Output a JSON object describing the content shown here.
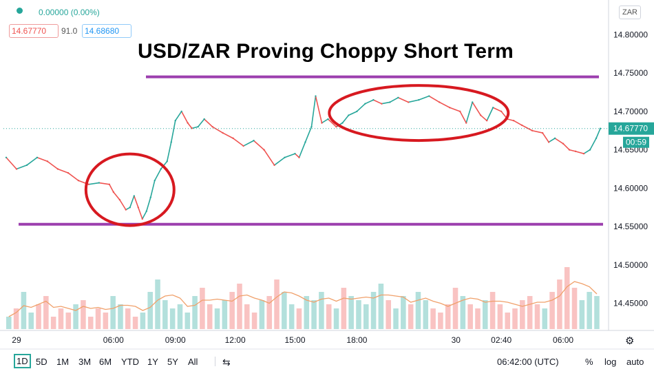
{
  "header": {
    "change": "0.00000 (0.00%)",
    "bid": "14.67770",
    "spread": "91.0",
    "ask": "14.68680"
  },
  "currency_badge": "ZAR",
  "colors": {
    "up": "#26a69a",
    "down": "#ef5350",
    "annotation_line": "#9c3fae",
    "ellipse": "#d71920",
    "volume_ma": "#f0a06a"
  },
  "chart_data": {
    "type": "line",
    "title": "USD/ZAR Proving Choppy Short Term",
    "price_axis": {
      "ticks": [
        "14.80000",
        "14.75000",
        "14.70000",
        "14.65000",
        "14.60000",
        "14.55000",
        "14.50000",
        "14.45000"
      ],
      "ylim": [
        14.43,
        14.82
      ]
    },
    "time_axis": {
      "ticks": [
        "29",
        "06:00",
        "09:00",
        "12:00",
        "15:00",
        "18:00",
        "30",
        "02:40",
        "06:00"
      ],
      "xlim_hours": [
        0,
        29
      ]
    },
    "price_series": {
      "name": "USD/ZAR",
      "x_hours": [
        0,
        0.5,
        1,
        1.5,
        2,
        2.5,
        3,
        3.5,
        4,
        4.5,
        5,
        5.2,
        5.5,
        5.8,
        6,
        6.2,
        6.4,
        6.6,
        6.8,
        7,
        7.2,
        7.5,
        7.8,
        8,
        8.2,
        8.5,
        8.8,
        9,
        9.3,
        9.6,
        10,
        10.5,
        11,
        11.5,
        12,
        12.5,
        13,
        13.5,
        14,
        14.2,
        14.5,
        14.8,
        15,
        15.3,
        15.6,
        16,
        16.3,
        16.6,
        17,
        17.4,
        17.8,
        18.2,
        18.6,
        19,
        19.5,
        20,
        20.5,
        21,
        21.5,
        22,
        22.3,
        22.6,
        23,
        23.3,
        23.6,
        24,
        24.3,
        24.6,
        25,
        25.5,
        26,
        26.3,
        26.6,
        27,
        27.3,
        27.6,
        28,
        28.3,
        28.6,
        28.8
      ],
      "values": [
        14.64,
        14.625,
        14.63,
        14.64,
        14.635,
        14.625,
        14.62,
        14.61,
        14.605,
        14.607,
        14.605,
        14.595,
        14.585,
        14.572,
        14.575,
        14.59,
        14.575,
        14.56,
        14.57,
        14.588,
        14.61,
        14.625,
        14.635,
        14.66,
        14.688,
        14.7,
        14.685,
        14.678,
        14.68,
        14.69,
        14.68,
        14.672,
        14.665,
        14.655,
        14.662,
        14.65,
        14.63,
        14.64,
        14.645,
        14.64,
        14.66,
        14.68,
        14.72,
        14.685,
        14.69,
        14.68,
        14.685,
        14.695,
        14.7,
        14.71,
        14.715,
        14.71,
        14.712,
        14.718,
        14.712,
        14.715,
        14.72,
        14.712,
        14.705,
        14.7,
        14.685,
        14.712,
        14.695,
        14.688,
        14.705,
        14.7,
        14.69,
        14.688,
        14.682,
        14.675,
        14.672,
        14.66,
        14.665,
        14.658,
        14.65,
        14.648,
        14.645,
        14.65,
        14.665,
        14.6777
      ]
    },
    "volume_series": {
      "name": "Volume",
      "values": [
        3,
        5,
        9,
        4,
        6,
        8,
        3,
        5,
        4,
        6,
        7,
        3,
        5,
        4,
        8,
        6,
        5,
        3,
        4,
        9,
        12,
        7,
        5,
        6,
        4,
        8,
        10,
        6,
        5,
        7,
        9,
        11,
        6,
        4,
        7,
        8,
        12,
        9,
        6,
        5,
        8,
        7,
        9,
        6,
        5,
        10,
        8,
        7,
        6,
        9,
        11,
        7,
        5,
        8,
        6,
        9,
        7,
        5,
        4,
        6,
        10,
        8,
        6,
        5,
        7,
        9,
        6,
        4,
        5,
        7,
        8,
        6,
        5,
        9,
        12,
        15,
        10,
        7,
        9,
        8
      ]
    },
    "annotations": {
      "resistance": 14.745,
      "support": 14.553
    },
    "last_price": "14.67770",
    "countdown": "00:59"
  },
  "toolbar": {
    "ranges": [
      "1D",
      "5D",
      "1M",
      "3M",
      "6M",
      "YTD",
      "1Y",
      "5Y",
      "All"
    ],
    "active_range": "1D",
    "time": "06:42:00 (UTC)",
    "percent": "%",
    "log": "log",
    "auto": "auto"
  }
}
